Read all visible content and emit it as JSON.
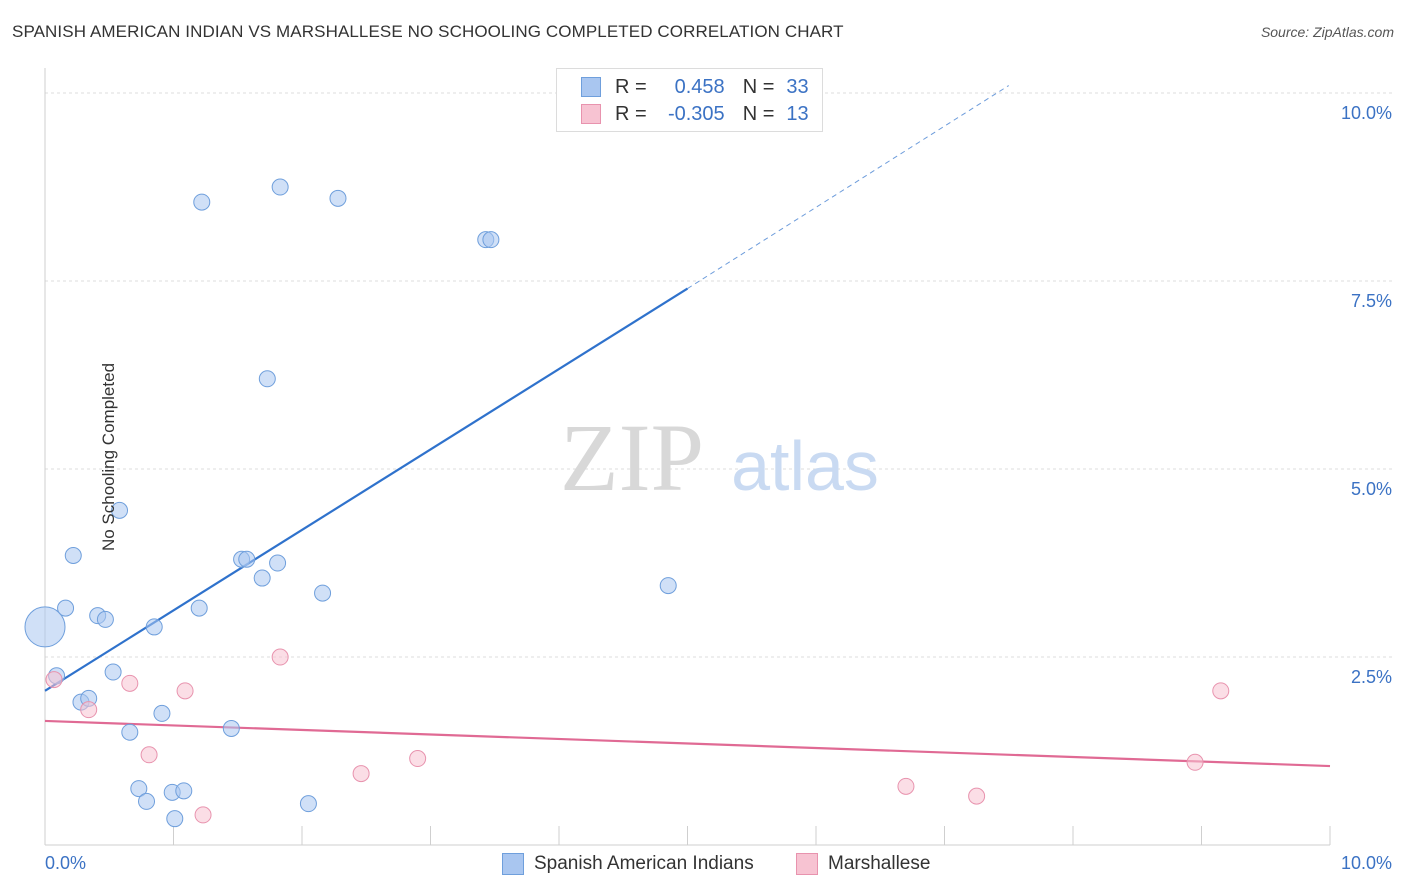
{
  "title": "SPANISH AMERICAN INDIAN VS MARSHALLESE NO SCHOOLING COMPLETED CORRELATION CHART",
  "source": "Source: ZipAtlas.com",
  "watermark": {
    "zip": "ZIP",
    "atlas": "atlas"
  },
  "legend": {
    "rows": [
      {
        "r_label": "R =",
        "r_value": "0.458",
        "n_label": "N =",
        "n_value": "33",
        "color": "#a9c6f0",
        "border": "#6f9fdc"
      },
      {
        "r_label": "R =",
        "r_value": "-0.305",
        "n_label": "N =",
        "n_value": "13",
        "color": "#f7c3d2",
        "border": "#e893ae"
      }
    ]
  },
  "bottom_legend": [
    {
      "label": "Spanish American Indians",
      "color": "#a9c6f0",
      "border": "#6f9fdc"
    },
    {
      "label": "Marshallese",
      "color": "#f7c3d2",
      "border": "#e893ae"
    }
  ],
  "chart_data": {
    "type": "scatter",
    "title": "SPANISH AMERICAN INDIAN VS MARSHALLESE NO SCHOOLING COMPLETED CORRELATION CHART",
    "xlabel": "",
    "ylabel": "No Schooling Completed",
    "xlim": [
      0,
      10
    ],
    "ylim": [
      0,
      10.2
    ],
    "x_tick_labels": [
      "0.0%",
      "10.0%"
    ],
    "y_ticks": [
      2.5,
      5.0,
      7.5,
      10.0
    ],
    "y_tick_labels": [
      "2.5%",
      "5.0%",
      "7.5%",
      "10.0%"
    ],
    "series": [
      {
        "name": "Spanish American Indians",
        "color": "#a9c6f0",
        "stroke": "#6f9fdc",
        "line_color": "#2f72cc",
        "trend": {
          "x0": 0.0,
          "y0": 2.05,
          "x1": 5.0,
          "y1": 7.4,
          "dash_to_x": 7.5,
          "dash_to_y": 10.1
        },
        "points": [
          [
            0.0,
            2.9,
            "big"
          ],
          [
            0.09,
            2.25
          ],
          [
            0.16,
            3.15
          ],
          [
            0.22,
            3.85
          ],
          [
            0.28,
            1.9
          ],
          [
            0.34,
            1.95
          ],
          [
            0.41,
            3.05
          ],
          [
            0.47,
            3.0
          ],
          [
            0.53,
            2.3
          ],
          [
            0.58,
            4.45
          ],
          [
            0.66,
            1.5
          ],
          [
            0.73,
            0.75
          ],
          [
            0.79,
            0.58
          ],
          [
            0.85,
            2.9
          ],
          [
            0.91,
            1.75
          ],
          [
            0.99,
            0.7
          ],
          [
            1.01,
            0.35
          ],
          [
            1.08,
            0.72
          ],
          [
            1.2,
            3.15
          ],
          [
            1.22,
            8.55
          ],
          [
            1.45,
            1.55
          ],
          [
            1.53,
            3.8
          ],
          [
            1.57,
            3.8
          ],
          [
            1.69,
            3.55
          ],
          [
            1.73,
            6.2
          ],
          [
            1.81,
            3.75
          ],
          [
            1.83,
            8.75
          ],
          [
            2.05,
            0.55
          ],
          [
            2.16,
            3.35
          ],
          [
            2.28,
            8.6
          ],
          [
            3.43,
            8.05
          ],
          [
            3.47,
            8.05
          ],
          [
            4.85,
            3.45
          ]
        ]
      },
      {
        "name": "Marshallese",
        "color": "#f7c3d2",
        "stroke": "#e893ae",
        "line_color": "#e06a94",
        "trend": {
          "x0": 0.0,
          "y0": 1.65,
          "x1": 10.0,
          "y1": 1.05
        },
        "points": [
          [
            0.07,
            2.2
          ],
          [
            0.34,
            1.8
          ],
          [
            0.66,
            2.15
          ],
          [
            0.81,
            1.2
          ],
          [
            1.09,
            2.05
          ],
          [
            1.23,
            0.4
          ],
          [
            1.83,
            2.5
          ],
          [
            2.46,
            0.95
          ],
          [
            2.9,
            1.15
          ],
          [
            6.7,
            0.78
          ],
          [
            7.25,
            0.65
          ],
          [
            8.95,
            1.1
          ],
          [
            9.15,
            2.05
          ]
        ]
      }
    ]
  }
}
